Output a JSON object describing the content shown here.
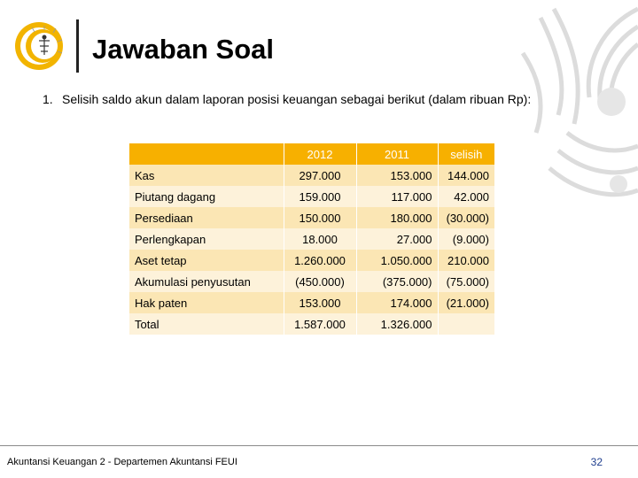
{
  "slide": {
    "title": "Jawaban Soal",
    "question": {
      "number": "1.",
      "text": "Selisih saldo akun dalam laporan posisi keuangan sebagai berikut (dalam ribuan Rp):"
    }
  },
  "table": {
    "headers": [
      "",
      "2012",
      "2011",
      "selisih"
    ],
    "rows": [
      {
        "label": "Kas",
        "y2012": "297.000",
        "y2011": "153.000",
        "selisih": "144.000"
      },
      {
        "label": "Piutang dagang",
        "y2012": "159.000",
        "y2011": "117.000",
        "selisih": "42.000"
      },
      {
        "label": "Persediaan",
        "y2012": "150.000",
        "y2011": "180.000",
        "selisih": "(30.000)"
      },
      {
        "label": "Perlengkapan",
        "y2012": "18.000",
        "y2011": "27.000",
        "selisih": "(9.000)"
      },
      {
        "label": "Aset tetap",
        "y2012": "1.260.000",
        "y2011": "1.050.000",
        "selisih": "210.000"
      },
      {
        "label": "Akumulasi penyusutan",
        "y2012": "(450.000)",
        "y2011": "(375.000)",
        "selisih": "(75.000)"
      },
      {
        "label": "Hak paten",
        "y2012": "153.000",
        "y2011": "174.000",
        "selisih": "(21.000)"
      },
      {
        "label": "Total",
        "y2012": "1.587.000",
        "y2011": "1.326.000",
        "selisih": ""
      }
    ]
  },
  "footer": {
    "text": "Akuntansi Keuangan 2 - Departemen Akuntansi FEUI",
    "page_number": "32"
  },
  "colors": {
    "header_bg": "#f7b000",
    "row_odd": "#fbe6b4",
    "row_even": "#fdf2da",
    "logo_gold": "#f2b400",
    "decoration_gray": "#d9d9d9",
    "page_number": "#1f3f8f"
  },
  "icons": {
    "logo": "university-logo-icon",
    "decoration": "watermark-decoration"
  }
}
